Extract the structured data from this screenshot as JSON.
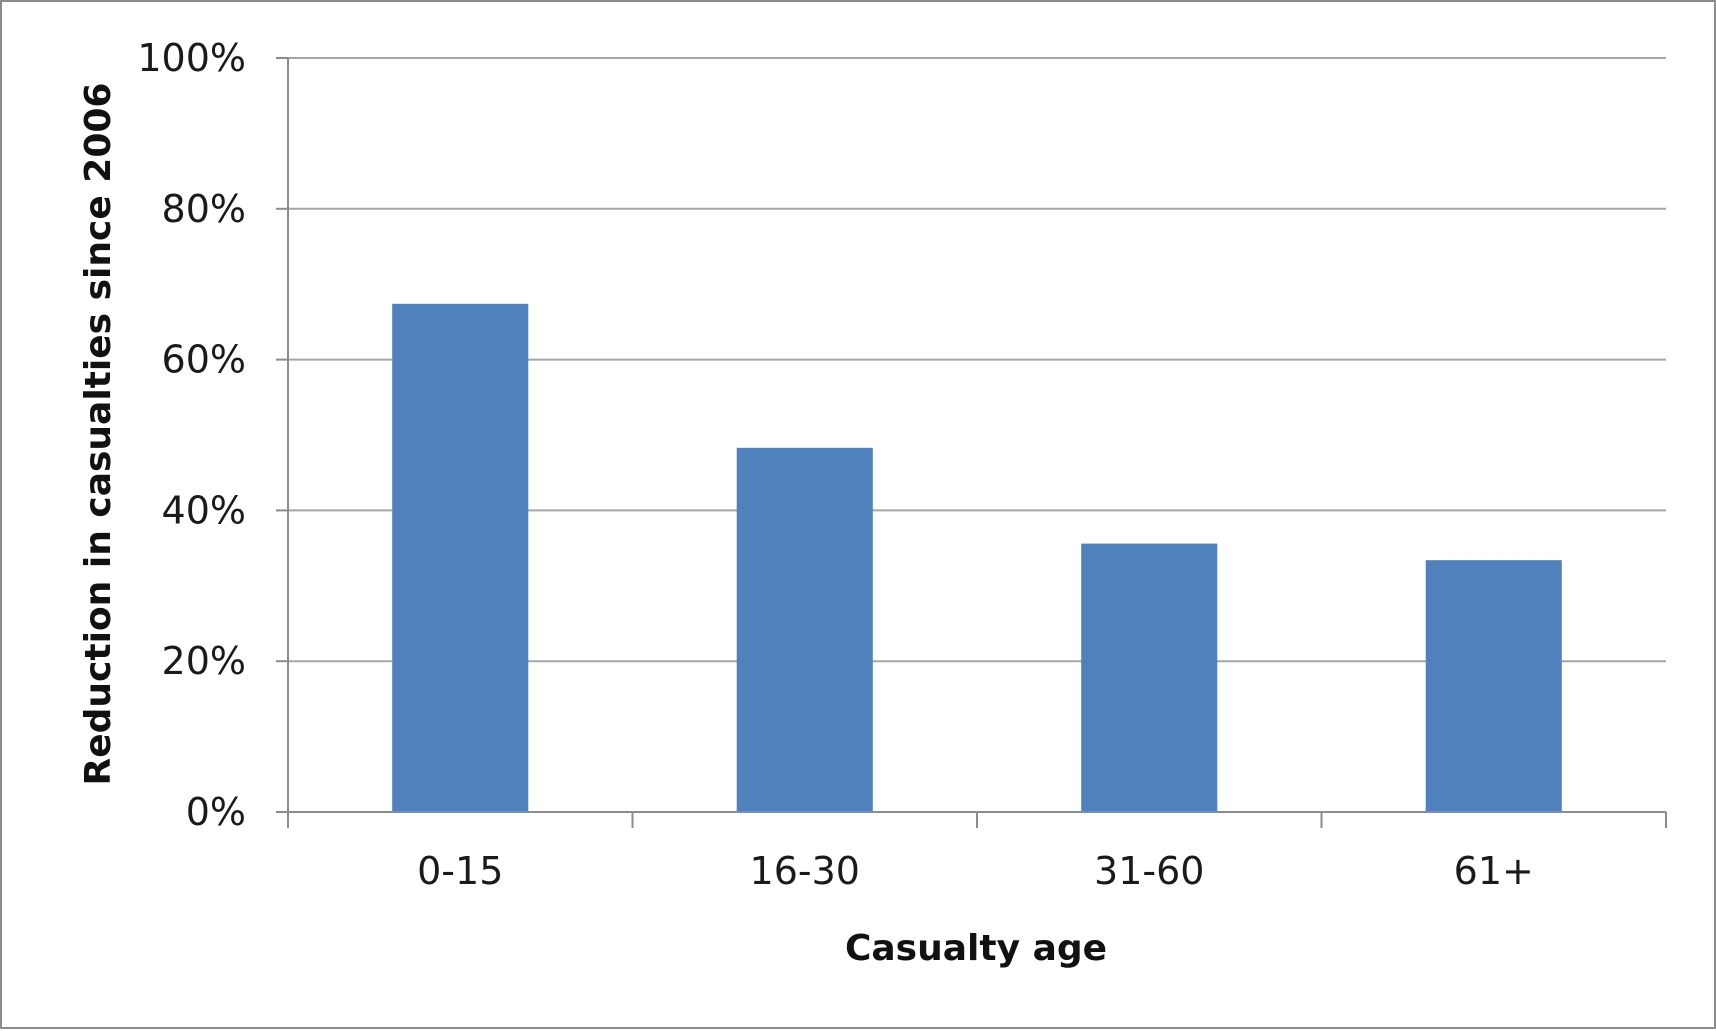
{
  "chart_data": {
    "type": "bar",
    "categories": [
      "0-15",
      "16-30",
      "31-60",
      "61+"
    ],
    "values": [
      67.4,
      48.3,
      35.6,
      33.4
    ],
    "value_format": "percent",
    "xlabel": "Casualty age",
    "ylabel": "Reduction in casualties since 2006",
    "ylim": [
      0,
      100
    ],
    "yticks": [
      "0%",
      "20%",
      "40%",
      "60%",
      "80%",
      "100%"
    ],
    "ytick_values": [
      0,
      20,
      40,
      60,
      80,
      100
    ],
    "grid": true,
    "legend": "none",
    "bar_color": "#4f81bd",
    "grid_color": "#a6a6a6"
  }
}
